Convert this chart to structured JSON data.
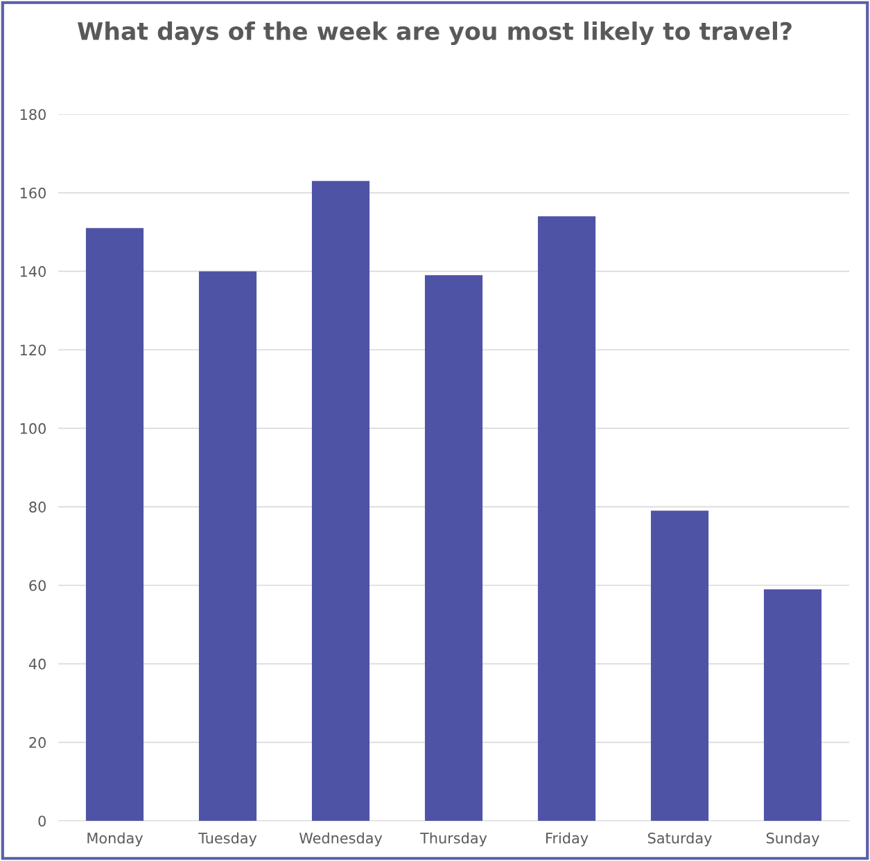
{
  "chart_data": {
    "type": "bar",
    "title": "What days of the week are you most likely to travel?",
    "categories": [
      "Monday",
      "Tuesday",
      "Wednesday",
      "Thursday",
      "Friday",
      "Saturday",
      "Sunday"
    ],
    "values": [
      151,
      140,
      163,
      139,
      154,
      79,
      59
    ],
    "color": "#4f53a6",
    "ylim": [
      0,
      180
    ],
    "yticks": [
      0,
      20,
      40,
      60,
      80,
      100,
      120,
      140,
      160,
      180
    ],
    "grid": "y",
    "legend": false
  }
}
